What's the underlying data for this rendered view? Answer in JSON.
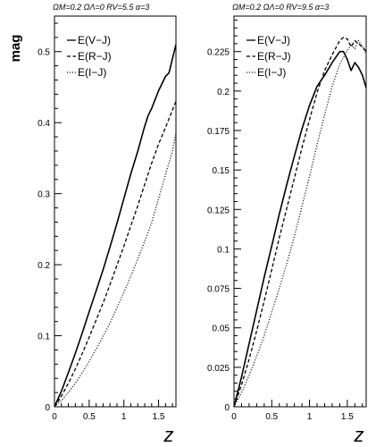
{
  "figure": {
    "ylabel": "mag",
    "xlabel": "z"
  },
  "chart_data": [
    {
      "type": "line",
      "title": "ΩM=0.2 ΩΛ=0 RV=5.5 α=3",
      "xlabel": "z",
      "ylabel": "mag",
      "xlim": [
        0,
        1.75
      ],
      "ylim": [
        0,
        0.55
      ],
      "x_ticks": [
        "0",
        "0.5",
        "1",
        "1.5"
      ],
      "y_ticks": [
        "0",
        "0.1",
        "0.2",
        "0.3",
        "0.4",
        "0.5"
      ],
      "legend_position": "top-left",
      "series": [
        {
          "name": "E(V−J)",
          "dash": "solid",
          "x": [
            0,
            0.1,
            0.2,
            0.3,
            0.4,
            0.5,
            0.6,
            0.7,
            0.8,
            0.9,
            1.0,
            1.1,
            1.2,
            1.3,
            1.35,
            1.4,
            1.5,
            1.6,
            1.65,
            1.75
          ],
          "y": [
            0,
            0.022,
            0.048,
            0.075,
            0.104,
            0.134,
            0.163,
            0.193,
            0.225,
            0.258,
            0.293,
            0.328,
            0.36,
            0.395,
            0.41,
            0.42,
            0.445,
            0.465,
            0.47,
            0.51
          ]
        },
        {
          "name": "E(R−J)",
          "dash": "dashed",
          "x": [
            0,
            0.1,
            0.2,
            0.3,
            0.4,
            0.5,
            0.6,
            0.7,
            0.8,
            0.9,
            1.0,
            1.1,
            1.2,
            1.3,
            1.4,
            1.5,
            1.6,
            1.7,
            1.75
          ],
          "y": [
            0,
            0.015,
            0.033,
            0.053,
            0.075,
            0.098,
            0.122,
            0.146,
            0.172,
            0.199,
            0.226,
            0.255,
            0.283,
            0.313,
            0.343,
            0.37,
            0.393,
            0.418,
            0.43
          ]
        },
        {
          "name": "E(I−J)",
          "dash": "dotted",
          "x": [
            0,
            0.1,
            0.2,
            0.3,
            0.4,
            0.5,
            0.6,
            0.7,
            0.8,
            0.9,
            1.0,
            1.1,
            1.2,
            1.3,
            1.4,
            1.5,
            1.6,
            1.7,
            1.75
          ],
          "y": [
            0,
            0.009,
            0.02,
            0.033,
            0.048,
            0.064,
            0.081,
            0.099,
            0.118,
            0.139,
            0.161,
            0.184,
            0.208,
            0.233,
            0.259,
            0.293,
            0.327,
            0.36,
            0.385
          ]
        }
      ]
    },
    {
      "type": "line",
      "title": "ΩM=0.2 ΩΛ=0 RV=9.5 α=3",
      "xlabel": "z",
      "ylabel": "",
      "xlim": [
        0,
        1.75
      ],
      "ylim": [
        0,
        0.2475
      ],
      "x_ticks": [
        "0",
        "0.5",
        "1",
        "1.5"
      ],
      "y_ticks": [
        "0",
        "0.025",
        "0.05",
        "0.075",
        "0.1",
        "0.125",
        "0.15",
        "0.175",
        "0.2",
        "0.225"
      ],
      "legend_position": "top-left",
      "series": [
        {
          "name": "E(V−J)",
          "dash": "solid",
          "x": [
            0,
            0.1,
            0.2,
            0.3,
            0.4,
            0.5,
            0.6,
            0.7,
            0.8,
            0.9,
            1.0,
            1.1,
            1.2,
            1.3,
            1.4,
            1.45,
            1.5,
            1.55,
            1.6,
            1.65,
            1.7,
            1.75
          ],
          "y": [
            0,
            0.019,
            0.04,
            0.061,
            0.082,
            0.102,
            0.122,
            0.141,
            0.159,
            0.176,
            0.191,
            0.203,
            0.21,
            0.218,
            0.225,
            0.225,
            0.22,
            0.213,
            0.218,
            0.215,
            0.21,
            0.202
          ]
        },
        {
          "name": "E(R−J)",
          "dash": "dashed",
          "x": [
            0,
            0.1,
            0.2,
            0.3,
            0.4,
            0.5,
            0.6,
            0.7,
            0.8,
            0.9,
            1.0,
            1.1,
            1.2,
            1.3,
            1.4,
            1.45,
            1.5,
            1.55,
            1.6,
            1.65,
            1.7,
            1.75
          ],
          "y": [
            0,
            0.014,
            0.03,
            0.048,
            0.067,
            0.087,
            0.107,
            0.126,
            0.145,
            0.164,
            0.182,
            0.199,
            0.213,
            0.223,
            0.232,
            0.234,
            0.233,
            0.228,
            0.232,
            0.23,
            0.228,
            0.225
          ]
        },
        {
          "name": "E(I−J)",
          "dash": "dotted",
          "x": [
            0,
            0.1,
            0.2,
            0.3,
            0.4,
            0.5,
            0.6,
            0.7,
            0.8,
            0.9,
            1.0,
            1.1,
            1.2,
            1.3,
            1.4,
            1.5,
            1.55,
            1.6,
            1.65,
            1.7,
            1.75
          ],
          "y": [
            0,
            0.009,
            0.02,
            0.032,
            0.045,
            0.06,
            0.075,
            0.091,
            0.108,
            0.127,
            0.146,
            0.166,
            0.185,
            0.203,
            0.217,
            0.226,
            0.229,
            0.227,
            0.232,
            0.228,
            0.224
          ]
        }
      ]
    }
  ]
}
